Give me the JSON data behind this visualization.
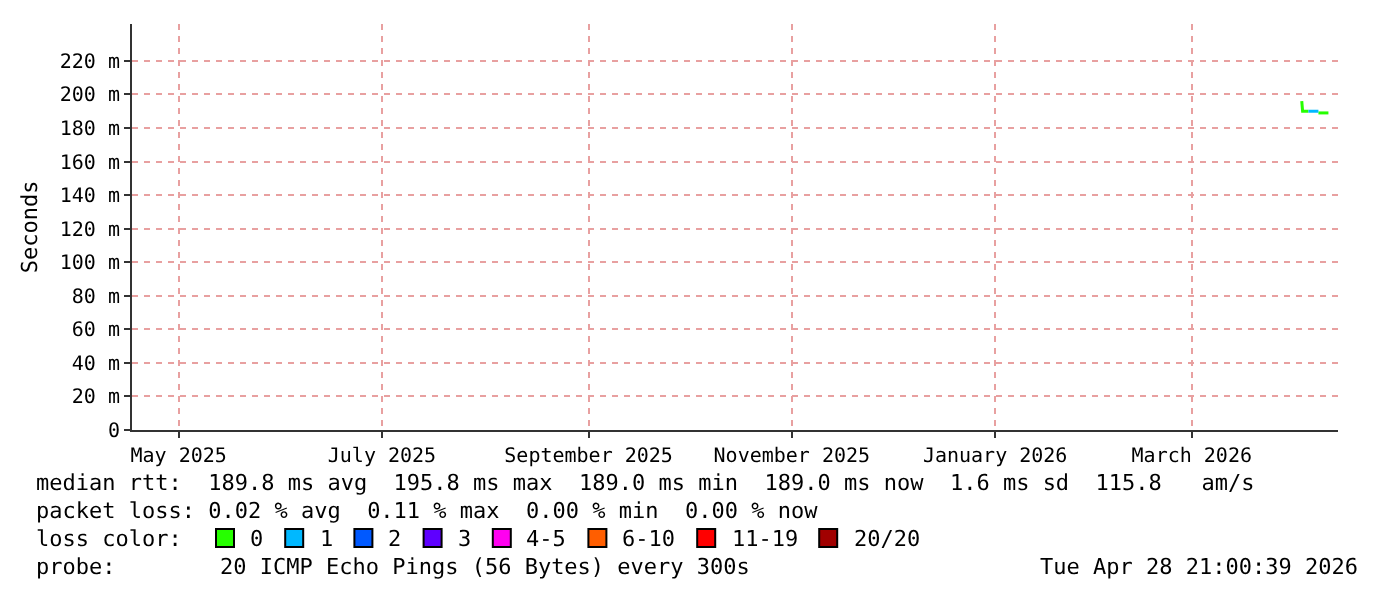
{
  "chart_data": {
    "type": "line",
    "ylabel": "Seconds",
    "xlim": [
      "2025-05-02",
      "2026-04-28T21:00"
    ],
    "xticks": [
      {
        "value": "2025-05-16",
        "label": "May 2025"
      },
      {
        "value": "2025-07-16",
        "label": "July 2025"
      },
      {
        "value": "2025-09-16",
        "label": "September 2025"
      },
      {
        "value": "2025-11-16",
        "label": "November 2025"
      },
      {
        "value": "2026-01-16",
        "label": "January 2026"
      },
      {
        "value": "2026-03-16",
        "label": "March 2026"
      }
    ],
    "ylim": [
      0,
      242
    ],
    "yticks": [
      {
        "value": 0,
        "label": "0"
      },
      {
        "value": 20,
        "label": "20 m"
      },
      {
        "value": 40,
        "label": "40 m"
      },
      {
        "value": 60,
        "label": "60 m"
      },
      {
        "value": 80,
        "label": "80 m"
      },
      {
        "value": 100,
        "label": "100 m"
      },
      {
        "value": 120,
        "label": "120 m"
      },
      {
        "value": 140,
        "label": "140 m"
      },
      {
        "value": 160,
        "label": "160 m"
      },
      {
        "value": 180,
        "label": "180 m"
      },
      {
        "value": 200,
        "label": "200 m"
      },
      {
        "value": 220,
        "label": "220 m"
      }
    ],
    "grid": true,
    "legend": "bottom",
    "legend_title": "loss color:",
    "marker": "none",
    "series": [
      {
        "name": "0",
        "color": "#26ff00",
        "x": [
          "2026-04-18",
          "2026-04-18T06:00",
          "2026-04-20",
          "2026-04-21",
          "2026-04-23",
          "2026-04-26"
        ],
        "values": [
          196,
          190,
          190,
          null,
          189,
          189
        ]
      },
      {
        "name": "1",
        "color": "#00b8ff",
        "x": [
          "2026-04-20",
          "2026-04-23"
        ],
        "values": [
          190,
          190
        ]
      },
      {
        "name": "2",
        "color": "#0059ff"
      },
      {
        "name": "3",
        "color": "#5e00ff"
      },
      {
        "name": "4-5",
        "color": "#ff00f0"
      },
      {
        "name": "6-10",
        "color": "#ff5e00"
      },
      {
        "name": "11-19",
        "color": "#ff0000"
      },
      {
        "name": "20/20",
        "color": "#a10000"
      }
    ],
    "annotations": [
      "median rtt:  189.8 ms avg  195.8 ms max  189.0 ms min  189.0 ms now  1.6 ms sd  115.8   am/s",
      "packet loss: 0.02 % avg  0.11 % max  0.00 % min  0.00 % now",
      "probe:",
      "20 ICMP Echo Pings (56 Bytes) every 300s",
      "Tue Apr 28 21:00:39 2026"
    ]
  }
}
